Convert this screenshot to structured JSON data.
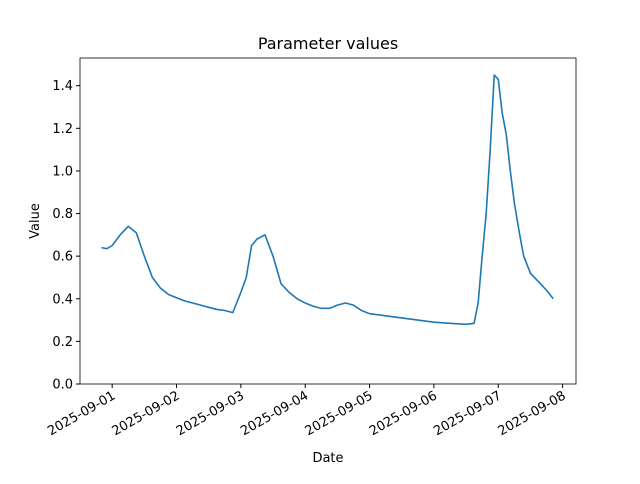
{
  "chart_data": {
    "type": "line",
    "title": "Parameter values",
    "xlabel": "Date",
    "ylabel": "Value",
    "x": [
      "2025-08-31T20:00Z",
      "2025-08-31T22:00Z",
      "2025-09-01T00:00Z",
      "2025-09-01T03:00Z",
      "2025-09-01T06:00Z",
      "2025-09-01T09:00Z",
      "2025-09-01T12:00Z",
      "2025-09-01T15:00Z",
      "2025-09-01T18:00Z",
      "2025-09-01T21:00Z",
      "2025-09-02T00:00Z",
      "2025-09-02T03:00Z",
      "2025-09-02T06:00Z",
      "2025-09-02T09:00Z",
      "2025-09-02T12:00Z",
      "2025-09-02T15:00Z",
      "2025-09-02T18:00Z",
      "2025-09-02T21:00Z",
      "2025-09-03T00:00Z",
      "2025-09-03T02:00Z",
      "2025-09-03T04:00Z",
      "2025-09-03T06:00Z",
      "2025-09-03T09:00Z",
      "2025-09-03T12:00Z",
      "2025-09-03T15:00Z",
      "2025-09-03T18:00Z",
      "2025-09-03T21:00Z",
      "2025-09-04T00:00Z",
      "2025-09-04T03:00Z",
      "2025-09-04T06:00Z",
      "2025-09-04T09:00Z",
      "2025-09-04T12:00Z",
      "2025-09-04T15:00Z",
      "2025-09-04T18:00Z",
      "2025-09-04T21:00Z",
      "2025-09-05T00:00Z",
      "2025-09-05T06:00Z",
      "2025-09-05T12:00Z",
      "2025-09-05T18:00Z",
      "2025-09-06T00:00Z",
      "2025-09-06T06:00Z",
      "2025-09-06T12:00Z",
      "2025-09-06T15:00Z",
      "2025-09-06T16:30Z",
      "2025-09-06T18:00Z",
      "2025-09-06T19:30Z",
      "2025-09-06T21:00Z",
      "2025-09-06T22:30Z",
      "2025-09-07T00:00Z",
      "2025-09-07T01:30Z",
      "2025-09-07T03:00Z",
      "2025-09-07T04:30Z",
      "2025-09-07T06:00Z",
      "2025-09-07T08:00Z",
      "2025-09-07T09:30Z",
      "2025-09-07T12:00Z",
      "2025-09-07T15:00Z",
      "2025-09-07T18:00Z",
      "2025-09-07T20:30Z"
    ],
    "series": [
      {
        "name": "Value",
        "color": "#1f77b4",
        "values": [
          0.64,
          0.635,
          0.65,
          0.7,
          0.74,
          0.71,
          0.6,
          0.5,
          0.45,
          0.42,
          0.405,
          0.39,
          0.38,
          0.37,
          0.36,
          0.35,
          0.345,
          0.335,
          0.43,
          0.5,
          0.65,
          0.68,
          0.7,
          0.6,
          0.47,
          0.43,
          0.4,
          0.38,
          0.365,
          0.355,
          0.355,
          0.37,
          0.38,
          0.37,
          0.345,
          0.33,
          0.32,
          0.31,
          0.3,
          0.29,
          0.285,
          0.28,
          0.285,
          0.38,
          0.6,
          0.8,
          1.1,
          1.45,
          1.43,
          1.27,
          1.17,
          1.0,
          0.85,
          0.7,
          0.6,
          0.52,
          0.48,
          0.44,
          0.4
        ]
      }
    ],
    "xlim": [
      "2025-08-31T12:00Z",
      "2025-09-08T05:00Z"
    ],
    "xticks": [
      "2025-09-01",
      "2025-09-02",
      "2025-09-03",
      "2025-09-04",
      "2025-09-05",
      "2025-09-06",
      "2025-09-07",
      "2025-09-08"
    ],
    "ylim": [
      0,
      1.53
    ],
    "yticks": [
      {
        "value": 0,
        "label": "0.0"
      },
      0.2,
      0.4,
      0.6,
      0.8,
      {
        "value": 1,
        "label": "1.0"
      },
      1.2,
      1.4
    ]
  }
}
